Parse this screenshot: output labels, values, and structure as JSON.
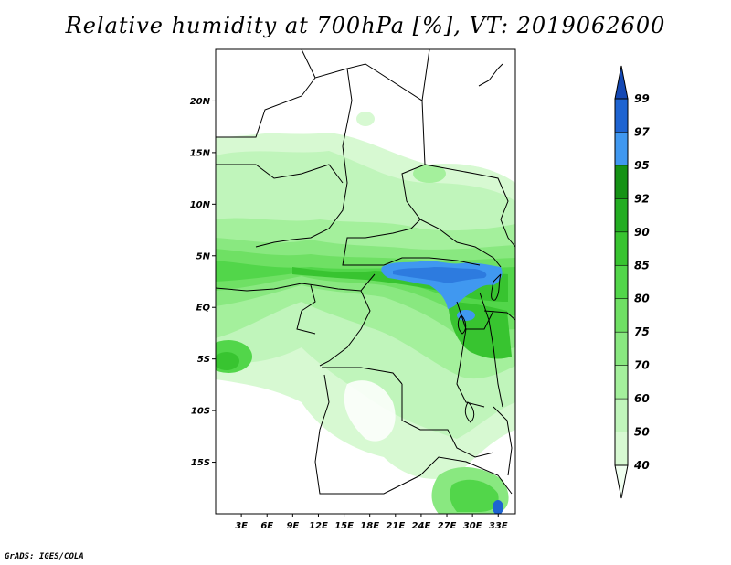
{
  "title": "Relative humidity at 700hPa [%], VT: 2019062600",
  "credit": "GrADS: IGES/COLA",
  "map": {
    "lon_range": [
      0,
      35
    ],
    "lat_range": [
      -20,
      25
    ],
    "lat_labels": [
      {
        "lat": 20,
        "label": "20N"
      },
      {
        "lat": 15,
        "label": "15N"
      },
      {
        "lat": 10,
        "label": "10N"
      },
      {
        "lat": 5,
        "label": "5N"
      },
      {
        "lat": 0,
        "label": "EQ"
      },
      {
        "lat": -5,
        "label": "5S"
      },
      {
        "lat": -10,
        "label": "10S"
      },
      {
        "lat": -15,
        "label": "15S"
      }
    ],
    "lon_labels": [
      {
        "lon": 3,
        "label": "3E"
      },
      {
        "lon": 6,
        "label": "6E"
      },
      {
        "lon": 9,
        "label": "9E"
      },
      {
        "lon": 12,
        "label": "12E"
      },
      {
        "lon": 15,
        "label": "15E"
      },
      {
        "lon": 18,
        "label": "18E"
      },
      {
        "lon": 21,
        "label": "21E"
      },
      {
        "lon": 24,
        "label": "24E"
      },
      {
        "lon": 27,
        "label": "27E"
      },
      {
        "lon": 30,
        "label": "30E"
      },
      {
        "lon": 33,
        "label": "33E"
      }
    ]
  },
  "colorbar": {
    "levels": [
      "40",
      "50",
      "60",
      "70",
      "75",
      "80",
      "85",
      "90",
      "92",
      "95",
      "97",
      "99"
    ],
    "colors": [
      "#f0fff0",
      "#d7f9d2",
      "#c0f5bb",
      "#a4f09c",
      "#89e880",
      "#6fe064",
      "#52d64a",
      "#38c430",
      "#23ad22",
      "#159215",
      "#4098f0",
      "#1e64d2",
      "#1448b4"
    ]
  }
}
